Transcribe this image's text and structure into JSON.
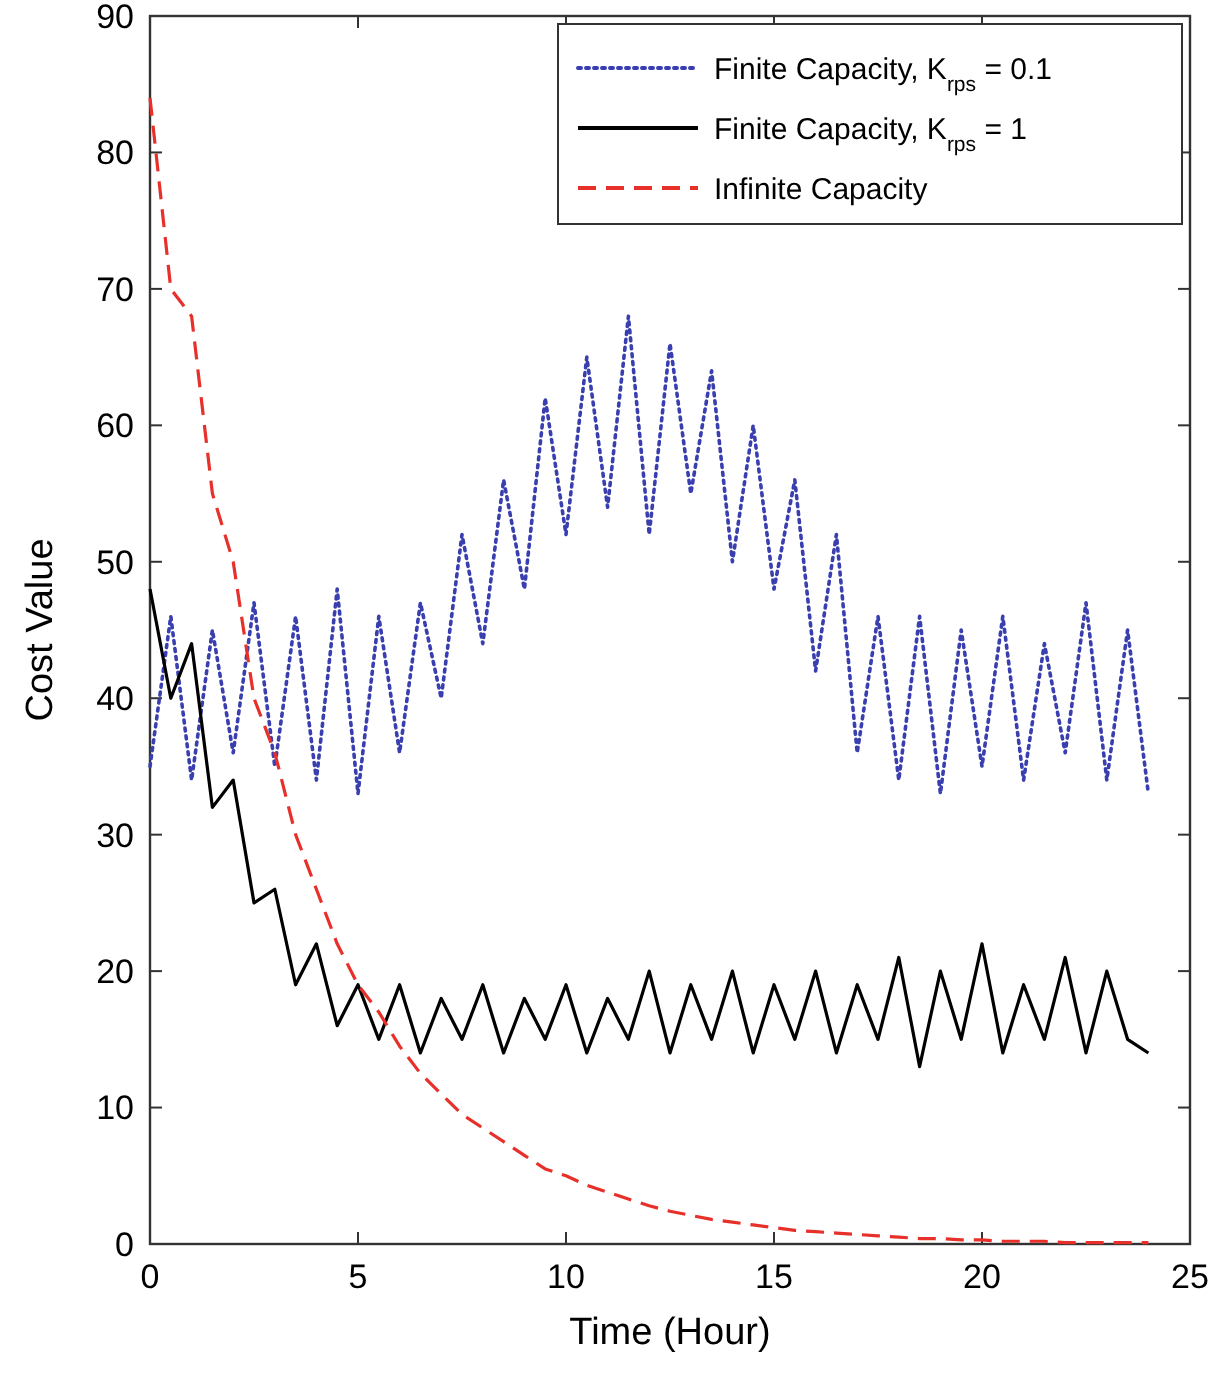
{
  "chart_data": {
    "type": "line",
    "xlabel": "Time (Hour)",
    "ylabel": "Cost Value",
    "xlim": [
      0,
      25
    ],
    "xticks": [
      0,
      5,
      10,
      15,
      20,
      25
    ],
    "ylim": [
      0,
      90
    ],
    "yticks": [
      0,
      10,
      20,
      30,
      40,
      50,
      60,
      70,
      80,
      90
    ],
    "grid": false,
    "legend": "top right",
    "marker": "none",
    "x": [
      0,
      0.5,
      1,
      1.5,
      2,
      2.5,
      3,
      3.5,
      4,
      4.5,
      5,
      5.5,
      6,
      6.5,
      7,
      7.5,
      8,
      8.5,
      9,
      9.5,
      10,
      10.5,
      11,
      11.5,
      12,
      12.5,
      13,
      13.5,
      14,
      14.5,
      15,
      15.5,
      16,
      16.5,
      17,
      17.5,
      18,
      18.5,
      19,
      19.5,
      20,
      20.5,
      21,
      21.5,
      22,
      22.5,
      23,
      23.5,
      24
    ],
    "series": [
      {
        "name": "Finite Capacity, K$_{rps}$ = 0.1",
        "color": "#3a3fb0",
        "line_style": "dotted",
        "values": [
          35,
          46,
          34,
          45,
          36,
          47,
          35,
          46,
          34,
          48,
          33,
          46,
          36,
          47,
          40,
          52,
          44,
          56,
          48,
          62,
          52,
          65,
          54,
          68,
          52,
          66,
          55,
          64,
          50,
          60,
          48,
          56,
          42,
          52,
          36,
          46,
          34,
          46,
          33,
          45,
          35,
          46,
          34,
          44,
          36,
          47,
          34,
          45,
          33
        ]
      },
      {
        "name": "Finite Capacity, K$_{rps}$ = 1",
        "color": "#000000",
        "line_style": "solid",
        "values": [
          48,
          40,
          44,
          32,
          34,
          25,
          26,
          19,
          22,
          16,
          19,
          15,
          19,
          14,
          18,
          15,
          19,
          14,
          18,
          15,
          19,
          14,
          18,
          15,
          20,
          14,
          19,
          15,
          20,
          14,
          19,
          15,
          20,
          14,
          19,
          15,
          21,
          13,
          20,
          15,
          22,
          14,
          19,
          15,
          21,
          14,
          20,
          15,
          14
        ]
      },
      {
        "name": "Infinite Capacity",
        "color": "#e8302a",
        "line_style": "dashed",
        "values": [
          84,
          70,
          68,
          55,
          50,
          40,
          36,
          30,
          26,
          22,
          19,
          17,
          14.5,
          12.5,
          11,
          9.5,
          8.5,
          7.5,
          6.5,
          5.5,
          5,
          4.3,
          3.8,
          3.3,
          2.8,
          2.4,
          2.1,
          1.8,
          1.6,
          1.4,
          1.2,
          1.0,
          0.9,
          0.8,
          0.7,
          0.6,
          0.5,
          0.4,
          0.4,
          0.3,
          0.3,
          0.2,
          0.2,
          0.2,
          0.1,
          0.1,
          0.1,
          0.1,
          0.1
        ]
      }
    ]
  }
}
